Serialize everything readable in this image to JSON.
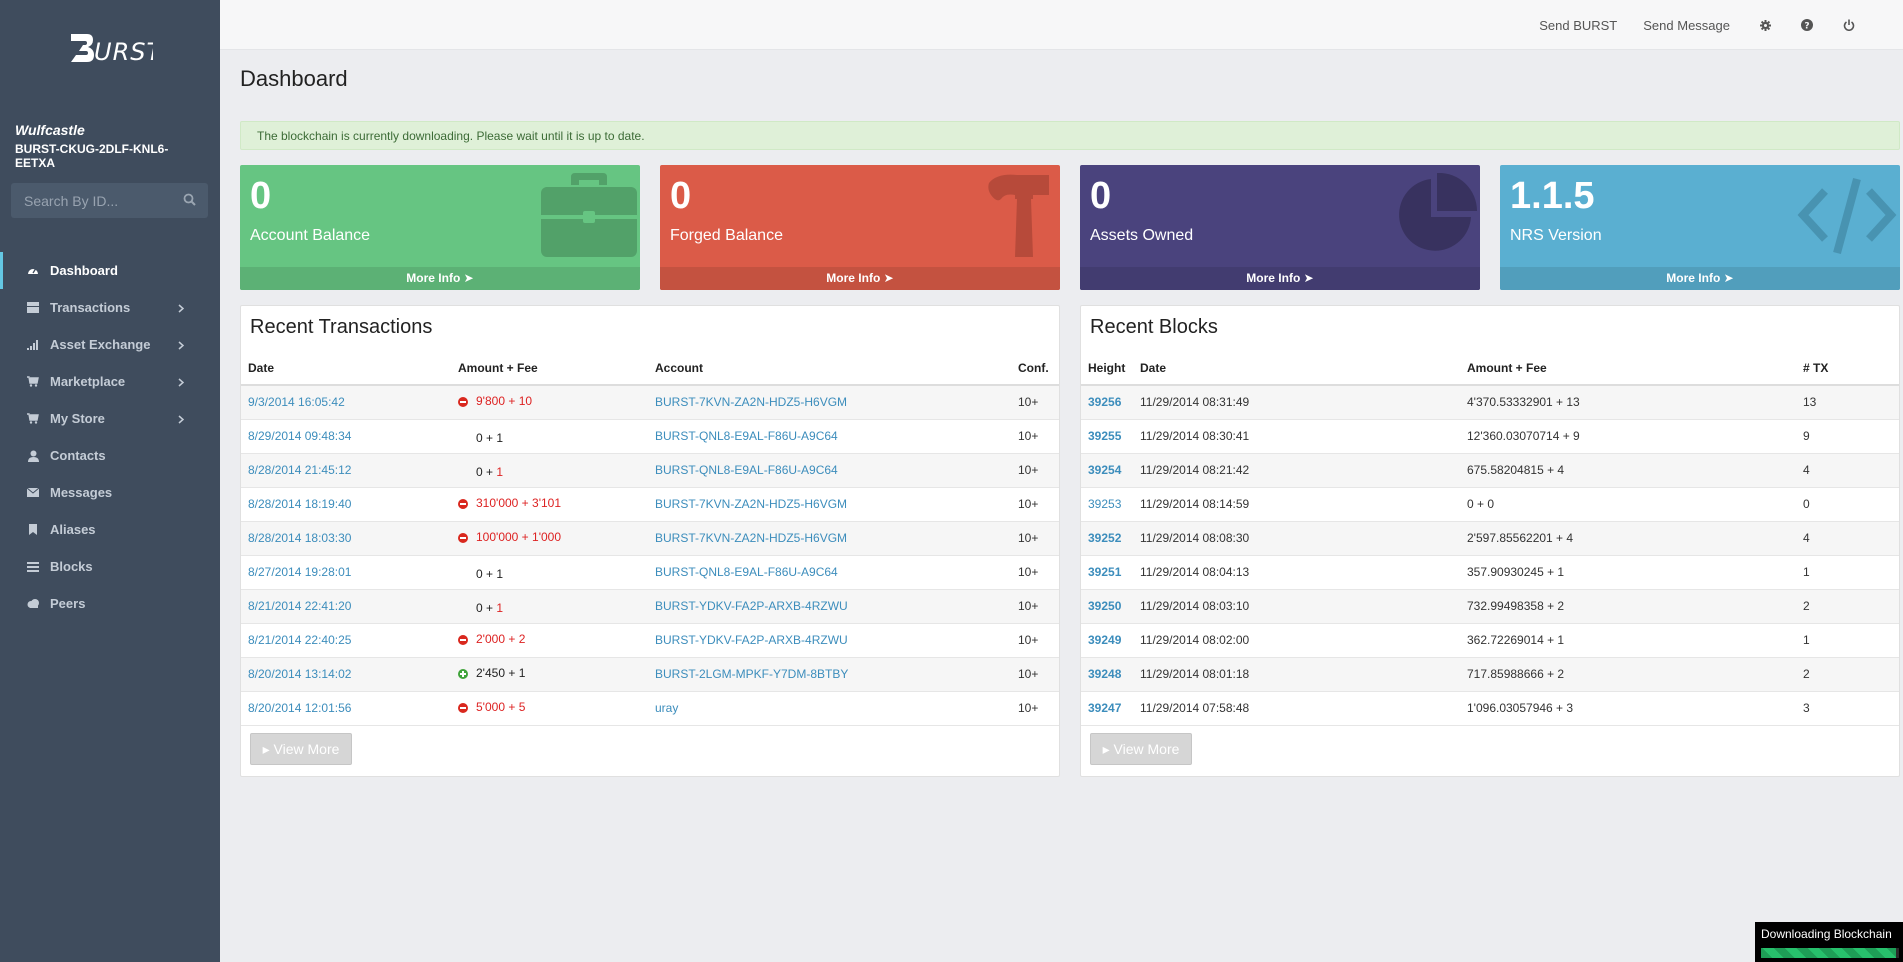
{
  "app": {
    "logo_text": "BURST"
  },
  "user": {
    "name": "Wulfcastle",
    "account_line1": "BURST-CKUG-2DLF-KNL6-",
    "account_line2": "EETXA"
  },
  "search": {
    "placeholder": "Search By ID..."
  },
  "nav": [
    {
      "label": "Dashboard",
      "icon": "dashboard-icon",
      "active": true,
      "chevron": false
    },
    {
      "label": "Transactions",
      "icon": "transactions-icon",
      "chevron": true
    },
    {
      "label": "Asset Exchange",
      "icon": "bar-chart-icon",
      "chevron": true
    },
    {
      "label": "Marketplace",
      "icon": "cart-icon",
      "chevron": true
    },
    {
      "label": "My Store",
      "icon": "cart-icon",
      "chevron": true
    },
    {
      "label": "Contacts",
      "icon": "user-icon",
      "chevron": false
    },
    {
      "label": "Messages",
      "icon": "envelope-icon",
      "chevron": false
    },
    {
      "label": "Aliases",
      "icon": "bookmark-icon",
      "chevron": false
    },
    {
      "label": "Blocks",
      "icon": "list-icon",
      "chevron": false
    },
    {
      "label": "Peers",
      "icon": "cloud-icon",
      "chevron": false
    }
  ],
  "topbar": {
    "send_burst": "Send BURST",
    "send_message": "Send Message"
  },
  "page": {
    "title": "Dashboard",
    "alert": "The blockchain is currently downloading. Please wait until it is up to date."
  },
  "stats": [
    {
      "value": "0",
      "label": "Account Balance",
      "more": "More Info",
      "color": "#66c582"
    },
    {
      "value": "0",
      "label": "Forged Balance",
      "more": "More Info",
      "color": "#db5b48"
    },
    {
      "value": "0",
      "label": "Assets Owned",
      "more": "More Info",
      "color": "#4a437d"
    },
    {
      "value": "1.1.5",
      "label": "NRS Version",
      "more": "More Info",
      "color": "#5aafd1"
    }
  ],
  "transactions": {
    "title": "Recent Transactions",
    "headers": [
      "Date",
      "Amount + Fee",
      "Account",
      "Conf."
    ],
    "rows": [
      {
        "date": "9/3/2014 16:05:42",
        "sign": "minus",
        "amount": "9'800",
        "plus": " + ",
        "fee": "10",
        "amount_color": "red",
        "fee_color": "red",
        "account": "BURST-7KVN-ZA2N-HDZ5-H6VGM",
        "conf": "10+"
      },
      {
        "date": "8/29/2014 09:48:34",
        "sign": "none",
        "amount": "0",
        "plus": " + ",
        "fee": "1",
        "amount_color": "black",
        "fee_color": "black",
        "account": "BURST-QNL8-E9AL-F86U-A9C64",
        "conf": "10+"
      },
      {
        "date": "8/28/2014 21:45:12",
        "sign": "none",
        "amount": "0",
        "plus": " + ",
        "fee": "1",
        "amount_color": "black",
        "fee_color": "red",
        "account": "BURST-QNL8-E9AL-F86U-A9C64",
        "conf": "10+"
      },
      {
        "date": "8/28/2014 18:19:40",
        "sign": "minus",
        "amount": "310'000",
        "plus": " + ",
        "fee": "3'101",
        "amount_color": "red",
        "fee_color": "red",
        "account": "BURST-7KVN-ZA2N-HDZ5-H6VGM",
        "conf": "10+"
      },
      {
        "date": "8/28/2014 18:03:30",
        "sign": "minus",
        "amount": "100'000",
        "plus": " + ",
        "fee": "1'000",
        "amount_color": "red",
        "fee_color": "red",
        "account": "BURST-7KVN-ZA2N-HDZ5-H6VGM",
        "conf": "10+"
      },
      {
        "date": "8/27/2014 19:28:01",
        "sign": "none",
        "amount": "0",
        "plus": " + ",
        "fee": "1",
        "amount_color": "black",
        "fee_color": "black",
        "account": "BURST-QNL8-E9AL-F86U-A9C64",
        "conf": "10+"
      },
      {
        "date": "8/21/2014 22:41:20",
        "sign": "none",
        "amount": "0",
        "plus": " + ",
        "fee": "1",
        "amount_color": "black",
        "fee_color": "red",
        "account": "BURST-YDKV-FA2P-ARXB-4RZWU",
        "conf": "10+"
      },
      {
        "date": "8/21/2014 22:40:25",
        "sign": "minus",
        "amount": "2'000",
        "plus": " + ",
        "fee": "2",
        "amount_color": "red",
        "fee_color": "red",
        "account": "BURST-YDKV-FA2P-ARXB-4RZWU",
        "conf": "10+"
      },
      {
        "date": "8/20/2014 13:14:02",
        "sign": "plus",
        "amount": "2'450",
        "plus": " + ",
        "fee": "1",
        "amount_color": "black",
        "fee_color": "black",
        "account": "BURST-2LGM-MPKF-Y7DM-8BTBY",
        "conf": "10+"
      },
      {
        "date": "8/20/2014 12:01:56",
        "sign": "minus",
        "amount": "5'000",
        "plus": " + ",
        "fee": "5",
        "amount_color": "red",
        "fee_color": "red",
        "account": "uray",
        "conf": "10+"
      }
    ],
    "view_more": "View More"
  },
  "blocks": {
    "title": "Recent Blocks",
    "headers": [
      "Height",
      "Date",
      "Amount + Fee",
      "# TX"
    ],
    "rows": [
      {
        "height": "39256",
        "date": "11/29/2014 08:31:49",
        "amount": "4'370.53332901 + 13",
        "tx": "13"
      },
      {
        "height": "39255",
        "date": "11/29/2014 08:30:41",
        "amount": "12'360.03070714 + 9",
        "tx": "9"
      },
      {
        "height": "39254",
        "date": "11/29/2014 08:21:42",
        "amount": "675.58204815 + 4",
        "tx": "4"
      },
      {
        "height": "39253",
        "date": "11/29/2014 08:14:59",
        "amount": "0 + 0",
        "tx": "0"
      },
      {
        "height": "39252",
        "date": "11/29/2014 08:08:30",
        "amount": "2'597.85562201 + 4",
        "tx": "4"
      },
      {
        "height": "39251",
        "date": "11/29/2014 08:04:13",
        "amount": "357.90930245 + 1",
        "tx": "1"
      },
      {
        "height": "39250",
        "date": "11/29/2014 08:03:10",
        "amount": "732.99498358 + 2",
        "tx": "2"
      },
      {
        "height": "39249",
        "date": "11/29/2014 08:02:00",
        "amount": "362.72269014 + 1",
        "tx": "1"
      },
      {
        "height": "39248",
        "date": "11/29/2014 08:01:18",
        "amount": "717.85988666 + 2",
        "tx": "2"
      },
      {
        "height": "39247",
        "date": "11/29/2014 07:58:48",
        "amount": "1'096.03057946 + 3",
        "tx": "3"
      }
    ],
    "view_more": "View More"
  },
  "download": {
    "label": "Downloading Blockchain",
    "progress": 0.98
  }
}
